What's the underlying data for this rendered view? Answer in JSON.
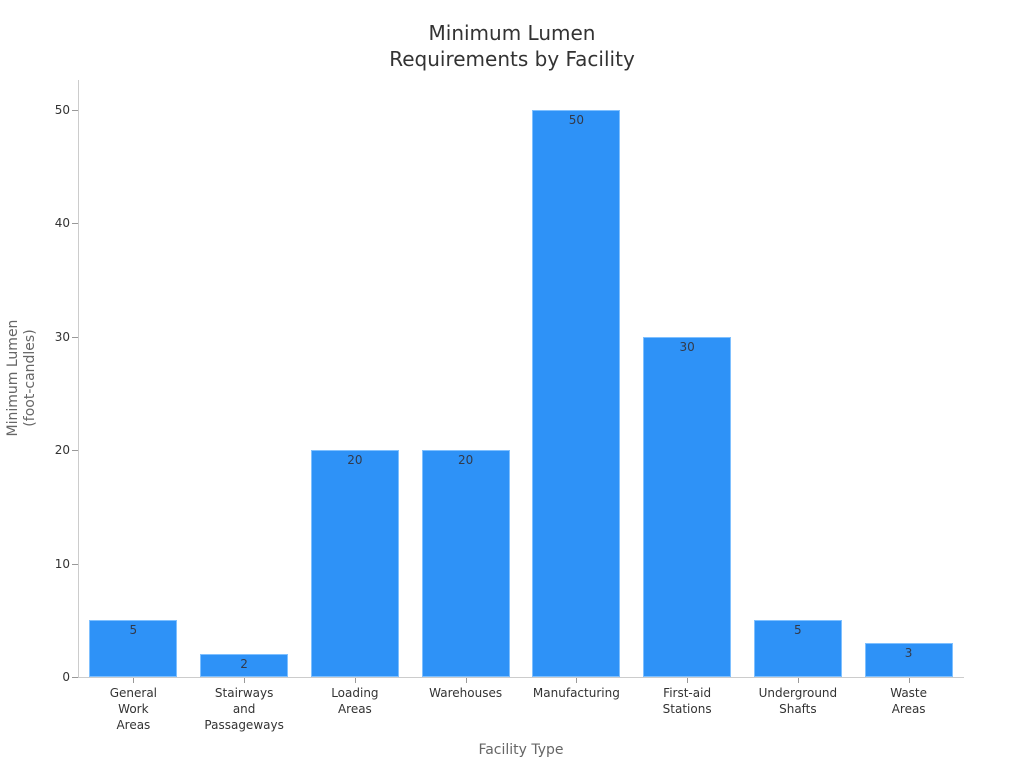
{
  "chart_data": {
    "type": "bar",
    "title": "Minimum Lumen\nRequirements by Facility",
    "xlabel": "Facility Type",
    "ylabel": "Minimum Lumen\n(foot-candles)",
    "categories": [
      "General Work Areas",
      "Stairways and Passageways",
      "Loading Areas",
      "Warehouses",
      "Manufacturing",
      "First-aid Stations",
      "Underground Shafts",
      "Waste Areas"
    ],
    "category_labels_wrapped": [
      "General\nWork\nAreas",
      "Stairways\nand\nPassageways",
      "Loading\nAreas",
      "Warehouses",
      "Manufacturing",
      "First-aid\nStations",
      "Underground\nShafts",
      "Waste\nAreas"
    ],
    "values": [
      5,
      2,
      20,
      20,
      50,
      30,
      5,
      3
    ],
    "ylim": [
      0,
      52.5
    ],
    "yticks": [
      0,
      10,
      20,
      30,
      40,
      50
    ],
    "grid": false,
    "legend": null,
    "bar_color": "#2e92f7"
  },
  "title_line1": "Minimum Lumen",
  "title_line2": "Requirements by Facility"
}
